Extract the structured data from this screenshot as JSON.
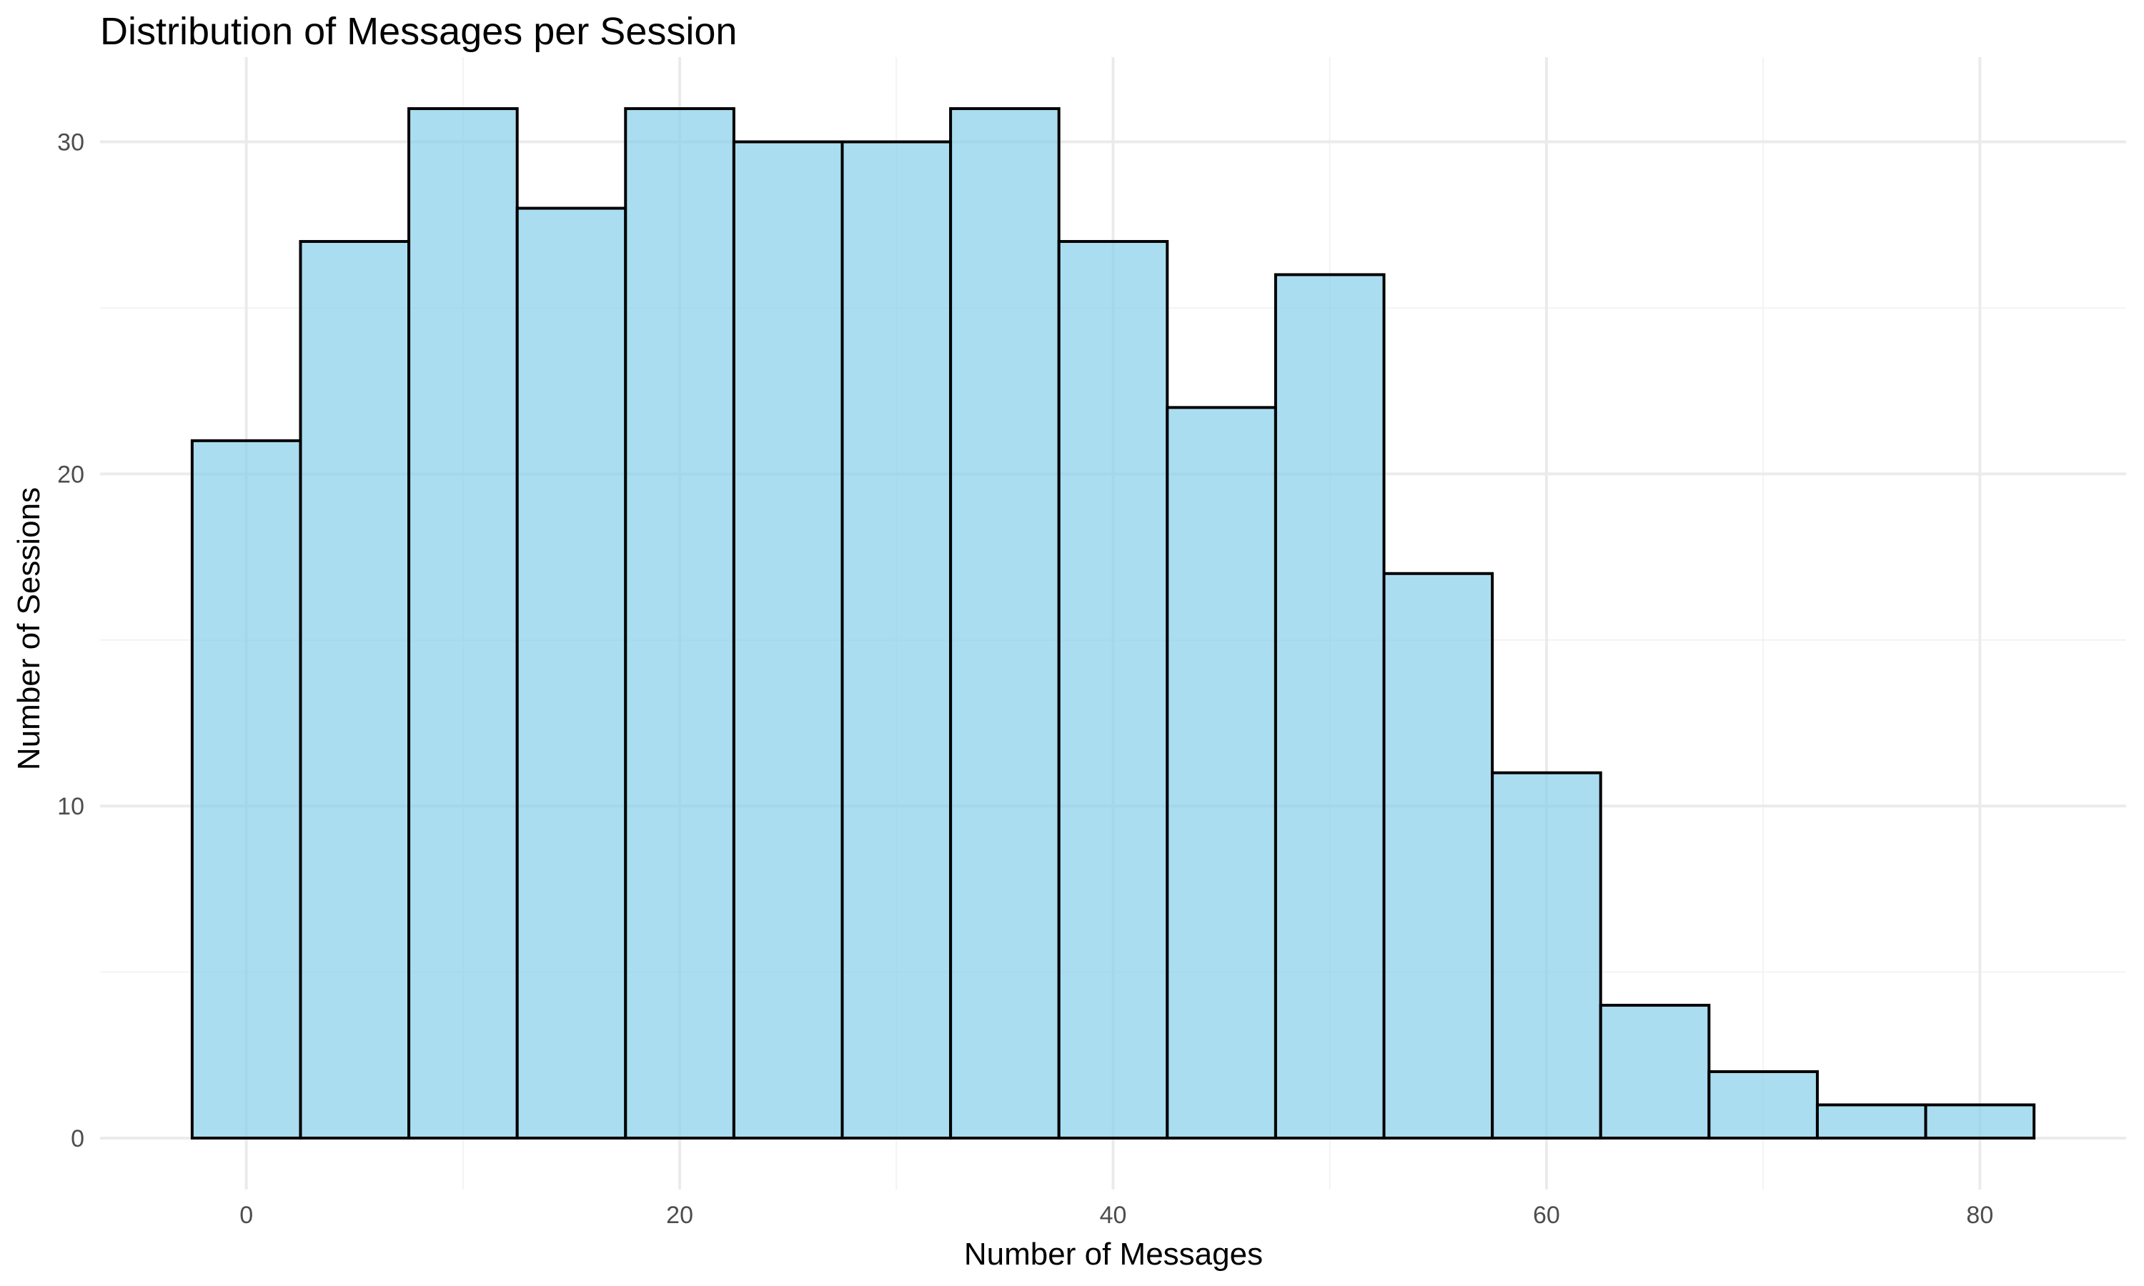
{
  "chart_data": {
    "type": "bar",
    "title": "Distribution of Messages per Session",
    "xlabel": "Number of Messages",
    "ylabel": "Number of Sessions",
    "bin_width": 5,
    "bins": [
      {
        "start": -2.5,
        "end": 2.5,
        "count": 21
      },
      {
        "start": 2.5,
        "end": 7.5,
        "count": 27
      },
      {
        "start": 7.5,
        "end": 12.5,
        "count": 31
      },
      {
        "start": 12.5,
        "end": 17.5,
        "count": 28
      },
      {
        "start": 17.5,
        "end": 22.5,
        "count": 31
      },
      {
        "start": 22.5,
        "end": 27.5,
        "count": 30
      },
      {
        "start": 27.5,
        "end": 32.5,
        "count": 30
      },
      {
        "start": 32.5,
        "end": 37.5,
        "count": 31
      },
      {
        "start": 37.5,
        "end": 42.5,
        "count": 27
      },
      {
        "start": 42.5,
        "end": 47.5,
        "count": 22
      },
      {
        "start": 47.5,
        "end": 52.5,
        "count": 26
      },
      {
        "start": 52.5,
        "end": 57.5,
        "count": 17
      },
      {
        "start": 57.5,
        "end": 62.5,
        "count": 11
      },
      {
        "start": 62.5,
        "end": 67.5,
        "count": 4
      },
      {
        "start": 67.5,
        "end": 72.5,
        "count": 2
      },
      {
        "start": 72.5,
        "end": 77.5,
        "count": 1
      },
      {
        "start": 77.5,
        "end": 82.5,
        "count": 1
      }
    ],
    "xlim": [
      -6.75,
      86.75
    ],
    "ylim": [
      -1.55,
      32.55
    ],
    "x_ticks": [
      0,
      20,
      40,
      60,
      80
    ],
    "x_tick_labels": [
      "0",
      "20",
      "40",
      "60",
      "80"
    ],
    "x_minor_ticks": [
      10,
      30,
      50,
      70
    ],
    "y_ticks": [
      0,
      10,
      20,
      30
    ],
    "y_tick_labels": [
      "0",
      "10",
      "20",
      "30"
    ],
    "y_minor_ticks": [
      5,
      15,
      25
    ],
    "grid": true,
    "legend": "none",
    "colors": {
      "bar_fill": "#87CEEB",
      "bar_outline": "#000000",
      "grid_major": "#EBEBEB",
      "grid_minor": "#F3F3F3",
      "background": "#FFFFFF"
    }
  }
}
